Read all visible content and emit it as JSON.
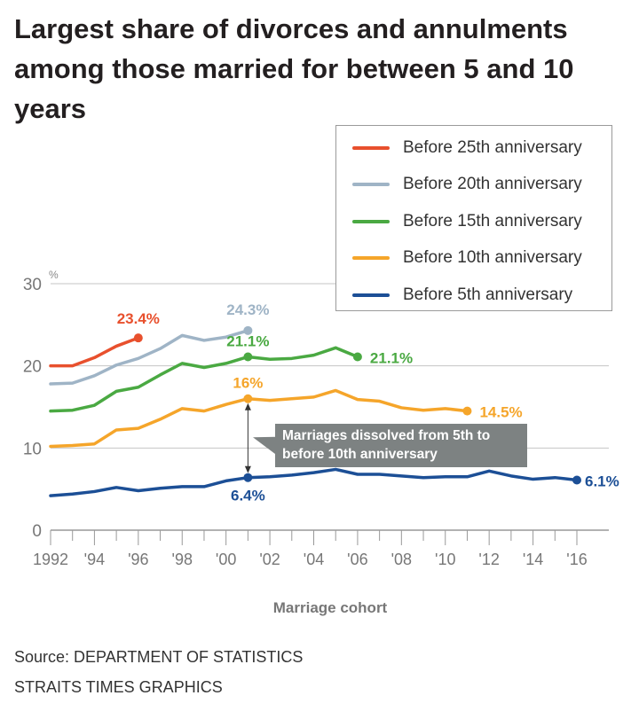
{
  "chart_data": {
    "type": "line",
    "title": "Largest share of divorces and annulments among those married for between 5 and 10 years",
    "xlabel": "Marriage cohort",
    "ylabel": "%",
    "ylim": [
      0,
      30
    ],
    "xlim": [
      1992,
      2016
    ],
    "yticks": [
      "0",
      "10",
      "20",
      "30"
    ],
    "xticks": [
      {
        "year": 1992,
        "label": "1992"
      },
      {
        "year": 1994,
        "label": "'94"
      },
      {
        "year": 1996,
        "label": "'96"
      },
      {
        "year": 1998,
        "label": "'98"
      },
      {
        "year": 2000,
        "label": "'00"
      },
      {
        "year": 2002,
        "label": "'02"
      },
      {
        "year": 2004,
        "label": "'04"
      },
      {
        "year": 2006,
        "label": "'06"
      },
      {
        "year": 2008,
        "label": "'08"
      },
      {
        "year": 2010,
        "label": "'10"
      },
      {
        "year": 2012,
        "label": "'12"
      },
      {
        "year": 2014,
        "label": "'14"
      },
      {
        "year": 2016,
        "label": "'16"
      }
    ],
    "grid": true,
    "legend_position": "top-right",
    "series": [
      {
        "name": "Before 25th anniversary",
        "color": "#e8502d",
        "start": 1992,
        "values": [
          20.0,
          20.0,
          21.0,
          22.4,
          23.4
        ],
        "labels": [
          {
            "year": 1996,
            "text": "23.4%"
          }
        ]
      },
      {
        "name": "Before 20th anniversary",
        "color": "#9fb4c6",
        "start": 1992,
        "values": [
          17.8,
          17.9,
          18.8,
          20.1,
          20.9,
          22.1,
          23.7,
          23.1,
          23.5,
          24.3
        ],
        "labels": [
          {
            "year": 2001,
            "text": "24.3%"
          }
        ]
      },
      {
        "name": "Before 15th anniversary",
        "color": "#4aa942",
        "start": 1992,
        "values": [
          14.5,
          14.6,
          15.2,
          16.9,
          17.4,
          18.9,
          20.3,
          19.8,
          20.3,
          21.1,
          20.8,
          20.9,
          21.3,
          22.2,
          21.1
        ],
        "labels": [
          {
            "year": 2001,
            "text": "21.1%"
          },
          {
            "year": 2006,
            "text": "21.1%"
          }
        ]
      },
      {
        "name": "Before 10th anniversary",
        "color": "#f5a52a",
        "start": 1992,
        "values": [
          10.2,
          10.3,
          10.5,
          12.2,
          12.4,
          13.5,
          14.8,
          14.5,
          15.3,
          16.0,
          15.8,
          16.0,
          16.2,
          17.0,
          15.9,
          15.7,
          14.9,
          14.6,
          14.8,
          14.5
        ],
        "labels": [
          {
            "year": 2001,
            "text": "16%"
          },
          {
            "year": 2011,
            "text": "14.5%"
          }
        ]
      },
      {
        "name": "Before 5th anniversary",
        "color": "#1c4f96",
        "start": 1992,
        "values": [
          4.2,
          4.4,
          4.7,
          5.2,
          4.8,
          5.1,
          5.3,
          5.3,
          6.0,
          6.4,
          6.5,
          6.7,
          7.0,
          7.4,
          6.8,
          6.8,
          6.6,
          6.4,
          6.5,
          6.5,
          7.2,
          6.6,
          6.2,
          6.4,
          6.1
        ],
        "labels": [
          {
            "year": 2001,
            "text": "6.4%"
          },
          {
            "year": 2016,
            "text": "6.1%"
          }
        ]
      }
    ],
    "annotation": "Marriages dissolved from 5th to before 10th anniversary"
  },
  "source": [
    "Source: DEPARTMENT OF STATISTICS",
    "STRAITS TIMES GRAPHICS"
  ]
}
